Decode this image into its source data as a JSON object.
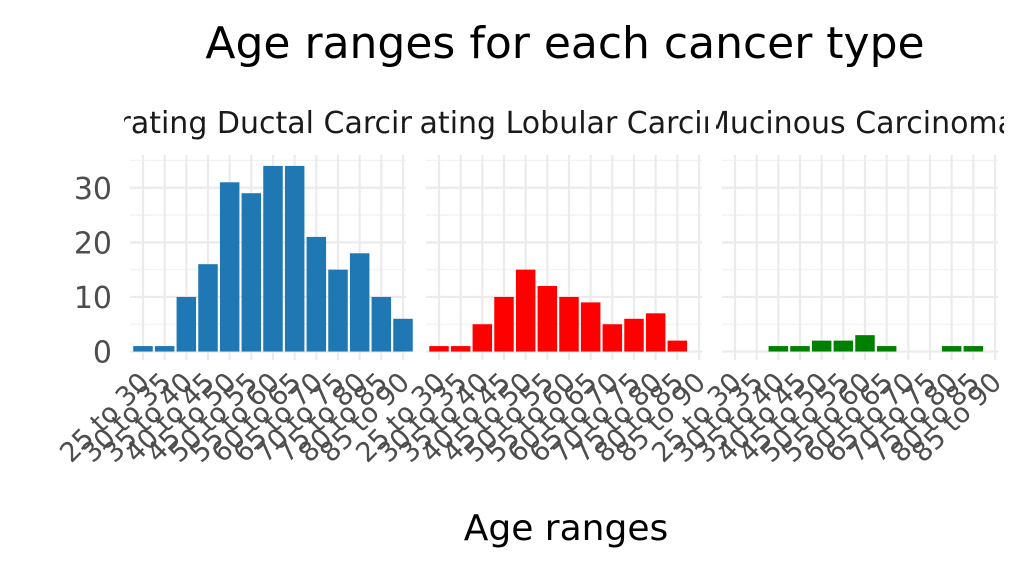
{
  "chart_data": {
    "type": "bar",
    "title": "Age ranges for each cancer type",
    "xlabel": "Age ranges",
    "ylabel": "",
    "ylim": [
      0,
      35
    ],
    "y_ticks": [
      0,
      10,
      20,
      30
    ],
    "grid": true,
    "legend": "none",
    "categories": [
      "25 to 30",
      "30 to 35",
      "35 to 40",
      "40 to 45",
      "45 to 50",
      "50 to 55",
      "55 to 60",
      "60 to 65",
      "65 to 70",
      "70 to 75",
      "75 to 80",
      "80 to 85",
      "85 to 90"
    ],
    "panels": [
      {
        "label": "Infiltrating Ductal Carcinoma",
        "color": "#1f77b4",
        "values": [
          1,
          1,
          10,
          16,
          31,
          29,
          34,
          34,
          21,
          15,
          18,
          10,
          6
        ]
      },
      {
        "label": "Infiltrating Lobular Carcinoma",
        "color": "#ff0000",
        "values": [
          1,
          1,
          5,
          10,
          15,
          12,
          10,
          9,
          5,
          6,
          7,
          2,
          0
        ]
      },
      {
        "label": "Mucinous Carcinoma",
        "color": "#008000",
        "values": [
          0,
          0,
          1,
          1,
          2,
          2,
          3,
          1,
          0,
          0,
          1,
          1,
          0
        ]
      }
    ]
  }
}
